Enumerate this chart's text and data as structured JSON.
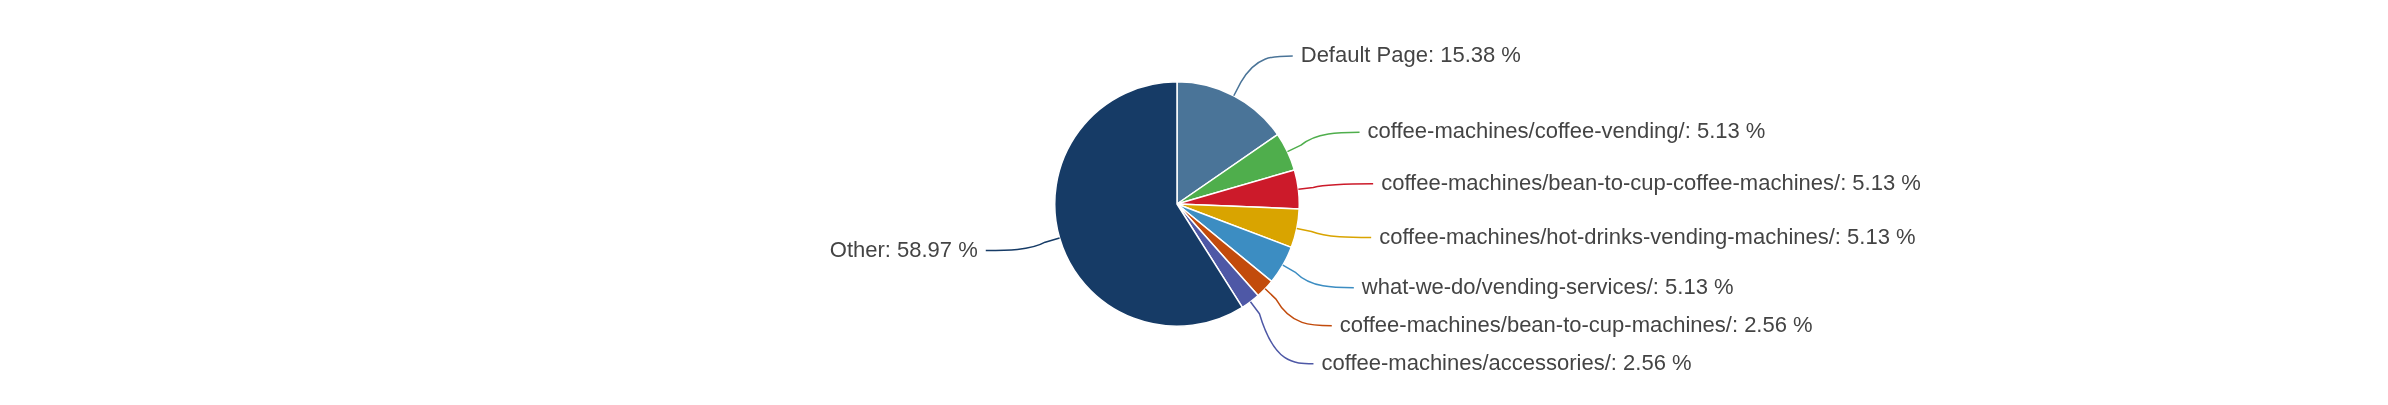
{
  "chart_data": {
    "type": "pie",
    "categories": [
      "Default Page",
      "coffee-machines/coffee-vending/",
      "coffee-machines/bean-to-cup-coffee-machines/",
      "coffee-machines/hot-drinks-vending-machines/",
      "what-we-do/vending-services/",
      "coffee-machines/bean-to-cup-machines/",
      "coffee-machines/accessories/",
      "Other"
    ],
    "values": [
      15.38,
      5.13,
      5.13,
      5.13,
      5.13,
      2.56,
      2.56,
      58.97
    ],
    "value_labels": [
      "15.38 %",
      "5.13 %",
      "5.13 %",
      "5.13 %",
      "5.13 %",
      "2.56 %",
      "2.56 %",
      "58.97 %"
    ],
    "colors": [
      "#4a7498",
      "#4fae4c",
      "#cc1a2a",
      "#d9a400",
      "#3c8dc2",
      "#c24b0c",
      "#4e58a6",
      "#163b66"
    ],
    "legend": false
  }
}
